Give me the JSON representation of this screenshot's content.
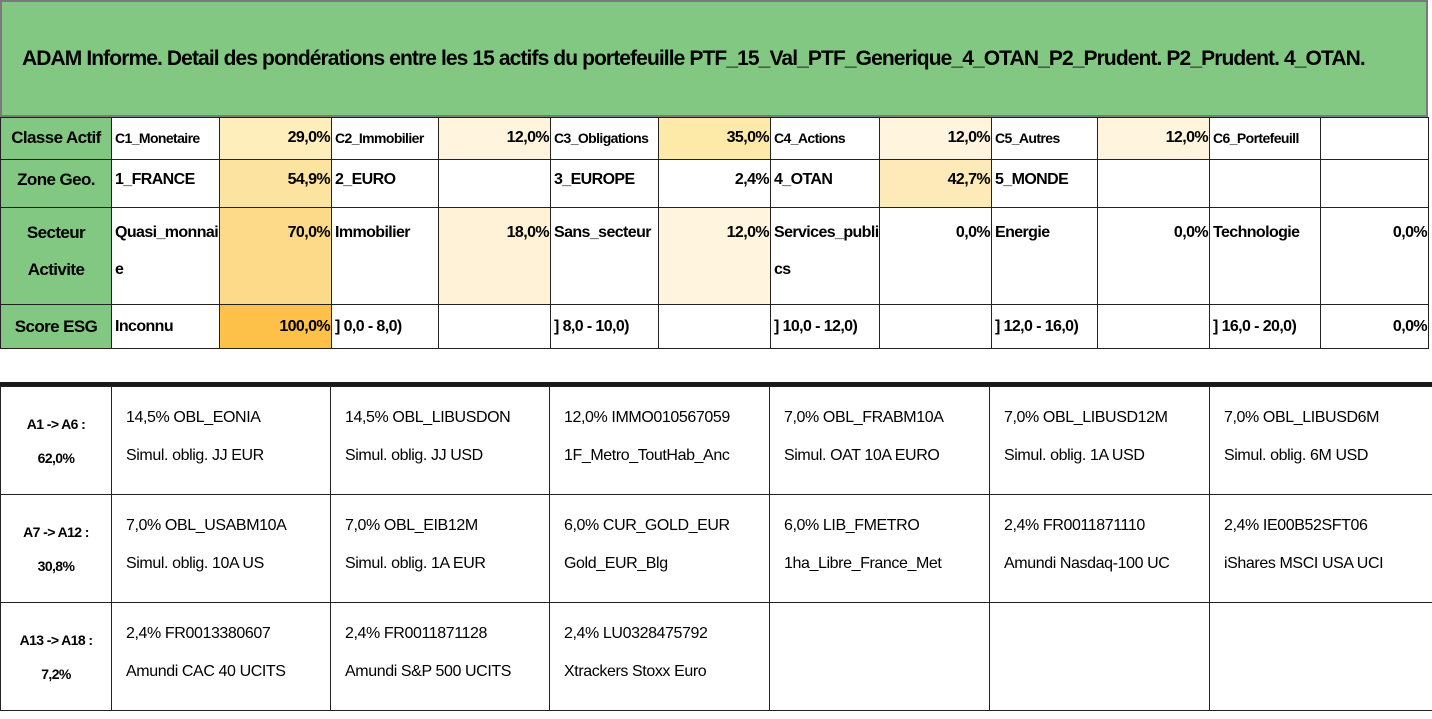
{
  "title": "ADAM Informe. Detail des pondérations entre les 15 actifs du portefeuille PTF_15_Val_PTF_Generique_4_OTAN_P2_Prudent. P2_Prudent. 4_OTAN.",
  "colors": {
    "header_green": "#82c882"
  },
  "summary": {
    "classe_actif": {
      "label": "Classe Actif",
      "cells": [
        {
          "name": "C1_Monetaire",
          "value": "29,0%",
          "fill": "#fdeebb"
        },
        {
          "name": "C2_Immobilier",
          "value": "12,0%",
          "fill": "#fff5df"
        },
        {
          "name": "C3_Obligations",
          "value": "35,0%",
          "fill": "#fde9a8"
        },
        {
          "name": "C4_Actions",
          "value": "12,0%",
          "fill": "#fff5df"
        },
        {
          "name": "C5_Autres",
          "value": "12,0%",
          "fill": "#fff5df"
        },
        {
          "name": "C6_Portefeuill",
          "value": "",
          "fill": "#ffffff"
        }
      ]
    },
    "zone_geo": {
      "label": "Zone Geo.",
      "cells": [
        {
          "name": "1_FRANCE",
          "value": "54,9%",
          "fill": "#fde3a0"
        },
        {
          "name": "2_EURO",
          "value": "",
          "fill": "#ffffff"
        },
        {
          "name": "3_EUROPE",
          "value": "2,4%",
          "fill": "#ffffff"
        },
        {
          "name": "4_OTAN",
          "value": "42,7%",
          "fill": "#fdeab8"
        },
        {
          "name": "5_MONDE",
          "value": "",
          "fill": "#ffffff"
        },
        {
          "name": "",
          "value": "",
          "fill": "#ffffff"
        }
      ]
    },
    "secteur_activite": {
      "label": "Secteur Activite",
      "cells": [
        {
          "name": "Quasi_monnaie",
          "value": "70,0%",
          "fill": "#fdd98a"
        },
        {
          "name": "Immobilier",
          "value": "18,0%",
          "fill": "#fff2d6"
        },
        {
          "name": "Sans_secteur",
          "value": "12,0%",
          "fill": "#fff5df"
        },
        {
          "name": "Services_publics",
          "value": "0,0%",
          "fill": "#ffffff"
        },
        {
          "name": "Energie",
          "value": "0,0%",
          "fill": "#ffffff"
        },
        {
          "name": "Technologie",
          "value": "0,0%",
          "fill": "#ffffff"
        }
      ]
    },
    "score_esg": {
      "label": "Score ESG",
      "cells": [
        {
          "name": "Inconnu",
          "value": "100,0%",
          "fill": "#fdc14a"
        },
        {
          "name": "] 0,0 - 8,0)",
          "value": "",
          "fill": "#ffffff"
        },
        {
          "name": "] 8,0 - 10,0)",
          "value": "",
          "fill": "#ffffff"
        },
        {
          "name": "] 10,0 - 12,0)",
          "value": "",
          "fill": "#ffffff"
        },
        {
          "name": "] 12,0 - 16,0)",
          "value": "",
          "fill": "#ffffff"
        },
        {
          "name": "] 16,0 - 20,0)",
          "value": "0,0%",
          "fill": "#ffffff"
        }
      ]
    }
  },
  "groups": [
    {
      "range": "A1 -> A6 :",
      "total": "62,0%",
      "assets": [
        {
          "line1": "14,5% OBL_EONIA",
          "line2": "Simul. oblig. JJ EUR"
        },
        {
          "line1": "14,5% OBL_LIBUSDON",
          "line2": "Simul. oblig. JJ USD"
        },
        {
          "line1": "12,0% IMMO010567059",
          "line2": "1F_Metro_ToutHab_Anc"
        },
        {
          "line1": "7,0% OBL_FRABM10A",
          "line2": "Simul. OAT 10A EURO"
        },
        {
          "line1": "7,0% OBL_LIBUSD12M",
          "line2": "Simul. oblig. 1A USD"
        },
        {
          "line1": "7,0% OBL_LIBUSD6M",
          "line2": "Simul. oblig. 6M USD"
        }
      ]
    },
    {
      "range": "A7 -> A12 :",
      "total": "30,8%",
      "assets": [
        {
          "line1": "7,0% OBL_USABM10A",
          "line2": "Simul. oblig. 10A US"
        },
        {
          "line1": "7,0% OBL_EIB12M",
          "line2": "Simul. oblig. 1A EUR"
        },
        {
          "line1": "6,0% CUR_GOLD_EUR",
          "line2": "Gold_EUR_Blg"
        },
        {
          "line1": "6,0% LIB_FMETRO",
          "line2": "1ha_Libre_France_Met"
        },
        {
          "line1": "2,4% FR0011871110",
          "line2": "Amundi Nasdaq-100 UC"
        },
        {
          "line1": "2,4% IE00B52SFT06",
          "line2": "iShares MSCI USA UCI"
        }
      ]
    },
    {
      "range": "A13 -> A18 :",
      "total": "7,2%",
      "assets": [
        {
          "line1": "2,4% FR0013380607",
          "line2": "Amundi CAC 40 UCITS"
        },
        {
          "line1": "2,4% FR0011871128",
          "line2": "Amundi S&P 500 UCITS"
        },
        {
          "line1": "2,4% LU0328475792",
          "line2": "Xtrackers Stoxx Euro"
        },
        {
          "line1": "",
          "line2": ""
        },
        {
          "line1": "",
          "line2": ""
        },
        {
          "line1": "",
          "line2": ""
        }
      ]
    }
  ]
}
